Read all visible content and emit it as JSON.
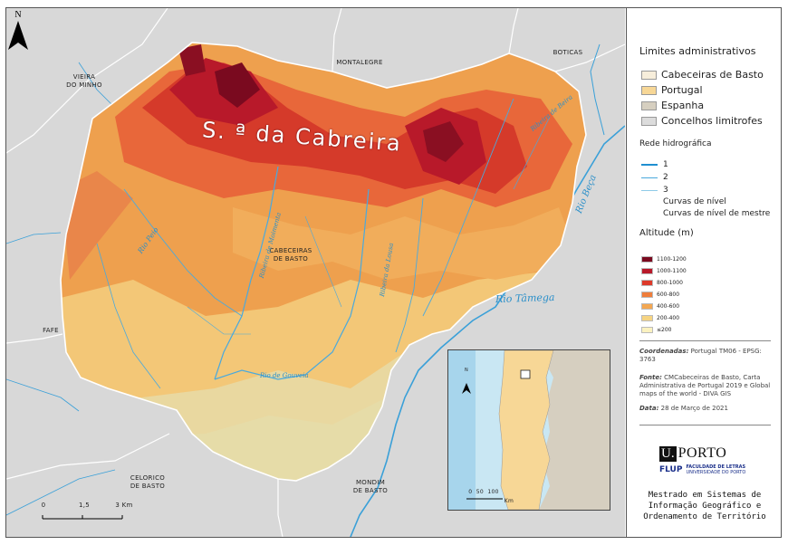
{
  "map": {
    "title_label": "S. ª da Cabreira",
    "place_labels": {
      "vieira": "VIEIRA\nDO MINHO",
      "montalegre": "MONTALEGRE",
      "boticas": "BOTICAS",
      "cabeceiras": "CABECEIRAS\nDE BASTO",
      "fafe": "FAFE",
      "celorico": "CELORICO\nDE BASTO",
      "mondim": "MONDIM\nDE BASTO"
    },
    "river_labels": {
      "tamega": "Rio Tâmega",
      "beca": "Rio Beça",
      "peio": "Rio Peio",
      "moimenta": "Ribeira de Moimenta",
      "gouveia": "Rio de Gouveia",
      "lousa": "Ribeira da Lousa",
      "beira": "Ribeira de Beira"
    },
    "north": "N",
    "scale": {
      "t0": "0",
      "t1": "1,5",
      "t2": "3 Km"
    },
    "inset": {
      "north": "N",
      "scale": "0  50  100",
      "unit": "Km"
    }
  },
  "legend": {
    "admin_title": "Limites administrativos",
    "admin_items": [
      {
        "label": "Cabeceiras de Basto",
        "color": "#f7eedb"
      },
      {
        "label": "Portugal",
        "color": "#f7d796"
      },
      {
        "label": "Espanha",
        "color": "#d6cfc0"
      },
      {
        "label": "Concelhos limitrofes",
        "color": "#dcdcdc"
      }
    ],
    "hydro_title": "Rede hidrográfica",
    "hydro_items": [
      "1",
      "2",
      "3",
      "Curvas de nível",
      "Curvas de nível de mestre"
    ],
    "alt_title": "Altitude (m)",
    "alt_items": [
      {
        "label": "1100-1200",
        "color": "#7a0a1f"
      },
      {
        "label": "1000-1100",
        "color": "#b8192a"
      },
      {
        "label": "800-1000",
        "color": "#dd3a2a"
      },
      {
        "label": "600-800",
        "color": "#ef7e3c"
      },
      {
        "label": "400-600",
        "color": "#f3a752"
      },
      {
        "label": "200-400",
        "color": "#f6d482"
      },
      {
        "label": "≤200",
        "color": "#fbf2c0"
      }
    ],
    "coords_label": "Coordenadas:",
    "coords_value": "Portugal TM06 - EPSG: 3763",
    "source_label": "Fonte:",
    "source_value": "CMCabeceiras de Basto, Carta Administrativa de Portugal 2019 e Global maps of the world - DIVA GIS",
    "date_label": "Data:",
    "date_value": "28 de Março de 2021",
    "logo_u": "U.",
    "logo_porto": "PORTO",
    "logo_flup": "FLUP",
    "logo_fac1": "FACULDADE DE LETRAS",
    "logo_fac2": "UNIVERSIDADE DO PORTO",
    "degree": "Mestrado em Sistemas de Informação Geográfico e Ordenamento de Território"
  }
}
